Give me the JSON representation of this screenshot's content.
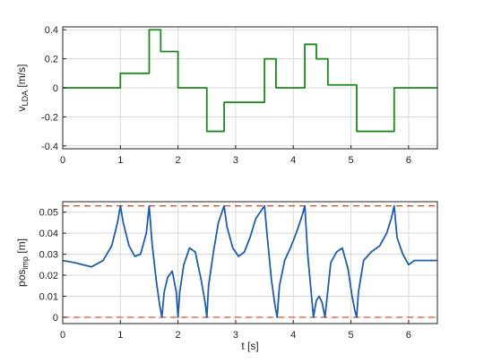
{
  "chart_data": [
    {
      "type": "line",
      "panel": "top",
      "ylabel_main": "v",
      "ylabel_sub": "LDA",
      "ylabel_unit": " [m/s]",
      "xlabel": "",
      "xlim": [
        0,
        6.5
      ],
      "ylim": [
        -0.42,
        0.42
      ],
      "xticks": [
        0,
        1,
        2,
        3,
        4,
        5,
        6
      ],
      "yticks": [
        -0.4,
        -0.2,
        0,
        0.2,
        0.4
      ],
      "ytick_labels": [
        "-0.4",
        "-0.2",
        "0",
        "0.2",
        "0.4"
      ],
      "grid": true,
      "series": [
        {
          "color": "#1a8a1a",
          "x": [
            0,
            1.0,
            1.0,
            1.5,
            1.5,
            1.7,
            1.7,
            2.0,
            2.0,
            2.5,
            2.5,
            2.8,
            2.8,
            3.5,
            3.5,
            3.7,
            3.7,
            4.2,
            4.2,
            4.4,
            4.4,
            4.6,
            4.6,
            5.1,
            5.1,
            5.75,
            5.75,
            6.5
          ],
          "y": [
            0,
            0,
            0.1,
            0.1,
            0.4,
            0.4,
            0.25,
            0.25,
            0,
            0,
            -0.3,
            -0.3,
            -0.1,
            -0.1,
            0.2,
            0.2,
            0,
            0,
            0.3,
            0.3,
            0.2,
            0.2,
            0.02,
            0.02,
            -0.3,
            -0.3,
            0,
            0
          ]
        }
      ]
    },
    {
      "type": "line",
      "panel": "bottom",
      "ylabel_main": "pos",
      "ylabel_sub": "imp",
      "ylabel_unit": " [m]",
      "xlabel": "t [s]",
      "xlim": [
        0,
        6.5
      ],
      "ylim": [
        -0.003,
        0.055
      ],
      "xticks": [
        0,
        1,
        2,
        3,
        4,
        5,
        6
      ],
      "yticks": [
        0,
        0.01,
        0.02,
        0.03,
        0.04,
        0.05
      ],
      "ytick_labels": [
        "0",
        "0.01",
        "0.02",
        "0.03",
        "0.04",
        "0.05"
      ],
      "grid": true,
      "reference_lines": [
        {
          "y": 0.053,
          "color": "#d9542b",
          "style": "dashed"
        },
        {
          "y": 0.0,
          "color": "#d9542b",
          "style": "dashed"
        }
      ],
      "series": [
        {
          "color": "#1f5ea8",
          "x": [
            0,
            0.2,
            0.5,
            0.7,
            0.85,
            0.95,
            1.0,
            1.05,
            1.15,
            1.25,
            1.35,
            1.45,
            1.5,
            1.55,
            1.62,
            1.68,
            1.72,
            1.76,
            1.82,
            1.9,
            1.97,
            2.0,
            2.03,
            2.1,
            2.2,
            2.3,
            2.4,
            2.47,
            2.5,
            2.53,
            2.62,
            2.7,
            2.75,
            2.8,
            2.85,
            2.95,
            3.05,
            3.15,
            3.25,
            3.35,
            3.45,
            3.5,
            3.55,
            3.62,
            3.68,
            3.72,
            3.76,
            3.85,
            3.95,
            4.05,
            4.15,
            4.2,
            4.25,
            4.3,
            4.35,
            4.4,
            4.45,
            4.5,
            4.55,
            4.6,
            4.65,
            4.75,
            4.85,
            4.95,
            5.02,
            5.07,
            5.1,
            5.13,
            5.22,
            5.35,
            5.5,
            5.62,
            5.7,
            5.75,
            5.8,
            5.9,
            6.0,
            6.1,
            6.2,
            6.5
          ],
          "y": [
            0.027,
            0.026,
            0.024,
            0.027,
            0.034,
            0.045,
            0.053,
            0.045,
            0.034,
            0.029,
            0.03,
            0.04,
            0.053,
            0.035,
            0.018,
            0.006,
            0.0,
            0.012,
            0.019,
            0.022,
            0.012,
            0.0,
            0.012,
            0.025,
            0.033,
            0.031,
            0.018,
            0.007,
            0.0,
            0.015,
            0.032,
            0.045,
            0.049,
            0.053,
            0.043,
            0.033,
            0.029,
            0.031,
            0.038,
            0.047,
            0.051,
            0.053,
            0.038,
            0.018,
            0.006,
            0.0,
            0.015,
            0.027,
            0.033,
            0.04,
            0.048,
            0.053,
            0.03,
            0.015,
            0.0,
            0.008,
            0.01,
            0.007,
            0.0,
            0.013,
            0.026,
            0.031,
            0.033,
            0.023,
            0.01,
            0.003,
            0.0,
            0.012,
            0.027,
            0.031,
            0.034,
            0.04,
            0.047,
            0.053,
            0.038,
            0.03,
            0.025,
            0.027,
            0.027,
            0.027
          ]
        }
      ]
    }
  ]
}
